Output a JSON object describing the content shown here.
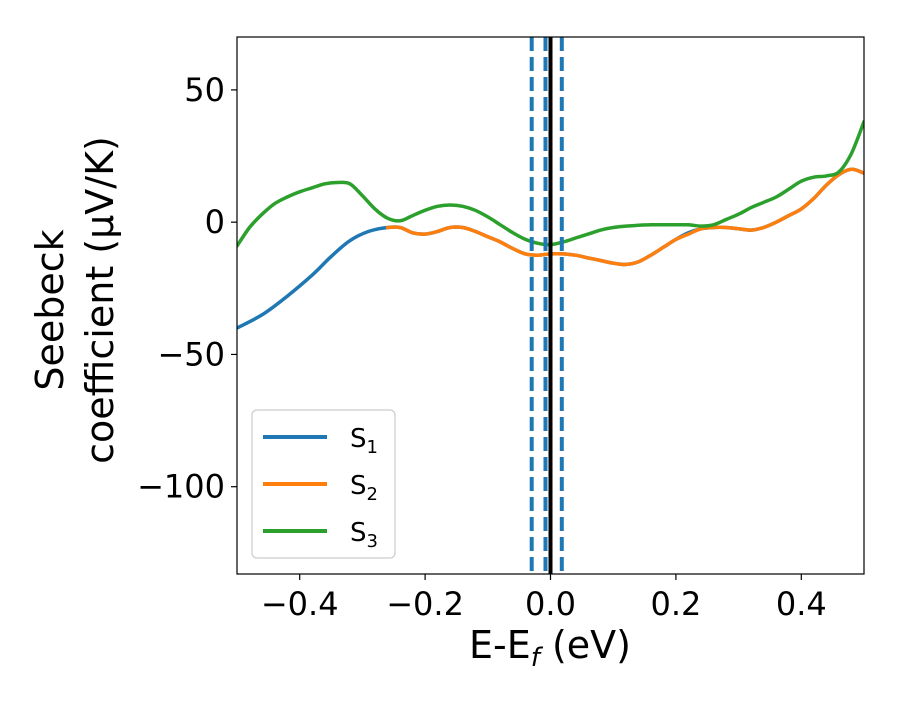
{
  "chart_data": {
    "type": "line",
    "title": "",
    "xlabel": "E-E",
    "xlabel_sub": "f",
    "xlabel_unit": " (eV)",
    "ylabel_line1": "Seebeck",
    "ylabel_line2": "coefficient  (μV/K)",
    "xlim": [
      -0.5,
      0.5
    ],
    "ylim": [
      -133,
      70
    ],
    "xticks": [
      -0.4,
      -0.2,
      0.0,
      0.2,
      0.4
    ],
    "xtick_labels": [
      "−0.4",
      "−0.2",
      "0.0",
      "0.2",
      "0.4"
    ],
    "yticks": [
      -100,
      -50,
      0,
      50
    ],
    "ytick_labels": [
      "−100",
      "−50",
      "0",
      "50"
    ],
    "grid": false,
    "legend_position": "lower-left",
    "reference_lines": {
      "solid": {
        "x": 0.0,
        "color": "#000000"
      },
      "dashed": {
        "x": [
          -0.03,
          -0.008,
          0.018
        ],
        "color": "#1f77b4"
      }
    },
    "series": [
      {
        "name": "S",
        "subscript": "1",
        "color": "#1f77b4",
        "points": [
          [
            -0.5,
            -40
          ],
          [
            -0.46,
            -35
          ],
          [
            -0.42,
            -28
          ],
          [
            -0.38,
            -20
          ],
          [
            -0.35,
            -13
          ],
          [
            -0.32,
            -7
          ],
          [
            -0.29,
            -3.5
          ],
          [
            -0.26,
            -2
          ],
          [
            -0.24,
            -2
          ],
          [
            -0.22,
            -4
          ],
          [
            -0.2,
            -4.5
          ],
          [
            -0.18,
            -3.5
          ],
          [
            -0.16,
            -2
          ],
          [
            -0.14,
            -2
          ],
          [
            -0.12,
            -3.5
          ],
          [
            -0.1,
            -5.5
          ],
          [
            -0.08,
            -7.5
          ],
          [
            -0.06,
            -10
          ],
          [
            -0.04,
            -12
          ],
          [
            -0.02,
            -12.5
          ],
          [
            0.0,
            -12
          ],
          [
            0.02,
            -12
          ],
          [
            0.04,
            -12.5
          ],
          [
            0.06,
            -13.5
          ],
          [
            0.08,
            -14.5
          ],
          [
            0.1,
            -15.5
          ],
          [
            0.12,
            -16
          ],
          [
            0.14,
            -15
          ],
          [
            0.16,
            -12.5
          ],
          [
            0.18,
            -9.5
          ],
          [
            0.2,
            -6.5
          ],
          [
            0.22,
            -4
          ],
          [
            0.24,
            -2.5
          ],
          [
            0.26,
            -2
          ],
          [
            0.28,
            -2
          ],
          [
            0.3,
            -2.5
          ],
          [
            0.32,
            -3
          ],
          [
            0.34,
            -2
          ],
          [
            0.36,
            0
          ],
          [
            0.38,
            2.5
          ],
          [
            0.4,
            5
          ],
          [
            0.42,
            9
          ],
          [
            0.44,
            14
          ],
          [
            0.46,
            18
          ],
          [
            0.48,
            20
          ],
          [
            0.5,
            18.5
          ]
        ]
      },
      {
        "name": "S",
        "subscript": "2",
        "color": "#ff7f0e",
        "points": [
          [
            -0.26,
            -2
          ],
          [
            -0.24,
            -2
          ],
          [
            -0.22,
            -4
          ],
          [
            -0.2,
            -4.5
          ],
          [
            -0.18,
            -3.5
          ],
          [
            -0.16,
            -2
          ],
          [
            -0.14,
            -2
          ],
          [
            -0.12,
            -3.5
          ],
          [
            -0.1,
            -5.5
          ],
          [
            -0.08,
            -7.5
          ],
          [
            -0.06,
            -10
          ],
          [
            -0.04,
            -12
          ],
          [
            -0.02,
            -12.5
          ],
          [
            0.0,
            -12
          ],
          [
            0.02,
            -12
          ],
          [
            0.04,
            -12.5
          ],
          [
            0.06,
            -13.5
          ],
          [
            0.08,
            -14.5
          ],
          [
            0.1,
            -15.5
          ],
          [
            0.12,
            -16
          ],
          [
            0.14,
            -15
          ],
          [
            0.16,
            -12.5
          ],
          [
            0.18,
            -9.5
          ],
          [
            0.2,
            -6.5
          ],
          [
            0.22,
            -4.5
          ],
          [
            0.24,
            -2.5
          ],
          [
            0.26,
            -2
          ],
          [
            0.28,
            -2
          ],
          [
            0.3,
            -2.5
          ],
          [
            0.32,
            -3
          ],
          [
            0.34,
            -2
          ],
          [
            0.36,
            0
          ],
          [
            0.38,
            2.5
          ],
          [
            0.4,
            5
          ],
          [
            0.42,
            9
          ],
          [
            0.44,
            14
          ],
          [
            0.46,
            18
          ],
          [
            0.48,
            20
          ],
          [
            0.5,
            18.5
          ]
        ]
      },
      {
        "name": "S",
        "subscript": "3",
        "color": "#2ca02c",
        "points": [
          [
            -0.5,
            -9
          ],
          [
            -0.48,
            -2
          ],
          [
            -0.46,
            3
          ],
          [
            -0.44,
            7
          ],
          [
            -0.42,
            9.5
          ],
          [
            -0.4,
            11.5
          ],
          [
            -0.38,
            13
          ],
          [
            -0.36,
            14.5
          ],
          [
            -0.34,
            15
          ],
          [
            -0.32,
            14.5
          ],
          [
            -0.3,
            10
          ],
          [
            -0.28,
            5
          ],
          [
            -0.26,
            1.5
          ],
          [
            -0.24,
            0.5
          ],
          [
            -0.22,
            2.5
          ],
          [
            -0.2,
            4.5
          ],
          [
            -0.18,
            6
          ],
          [
            -0.16,
            6.5
          ],
          [
            -0.14,
            6
          ],
          [
            -0.12,
            4.5
          ],
          [
            -0.1,
            2
          ],
          [
            -0.08,
            -1
          ],
          [
            -0.06,
            -4
          ],
          [
            -0.04,
            -6.5
          ],
          [
            -0.02,
            -8
          ],
          [
            0.0,
            -8.5
          ],
          [
            0.02,
            -7.5
          ],
          [
            0.04,
            -6
          ],
          [
            0.06,
            -4.5
          ],
          [
            0.08,
            -3
          ],
          [
            0.1,
            -2
          ],
          [
            0.12,
            -1.5
          ],
          [
            0.14,
            -1.2
          ],
          [
            0.16,
            -1
          ],
          [
            0.18,
            -1
          ],
          [
            0.2,
            -1
          ],
          [
            0.22,
            -1
          ],
          [
            0.24,
            -1.5
          ],
          [
            0.26,
            -1
          ],
          [
            0.28,
            1
          ],
          [
            0.3,
            3
          ],
          [
            0.32,
            5.5
          ],
          [
            0.34,
            7.5
          ],
          [
            0.36,
            9.5
          ],
          [
            0.38,
            12.5
          ],
          [
            0.4,
            15.5
          ],
          [
            0.42,
            17
          ],
          [
            0.44,
            17.5
          ],
          [
            0.46,
            19
          ],
          [
            0.48,
            26
          ],
          [
            0.5,
            38
          ]
        ]
      }
    ]
  }
}
